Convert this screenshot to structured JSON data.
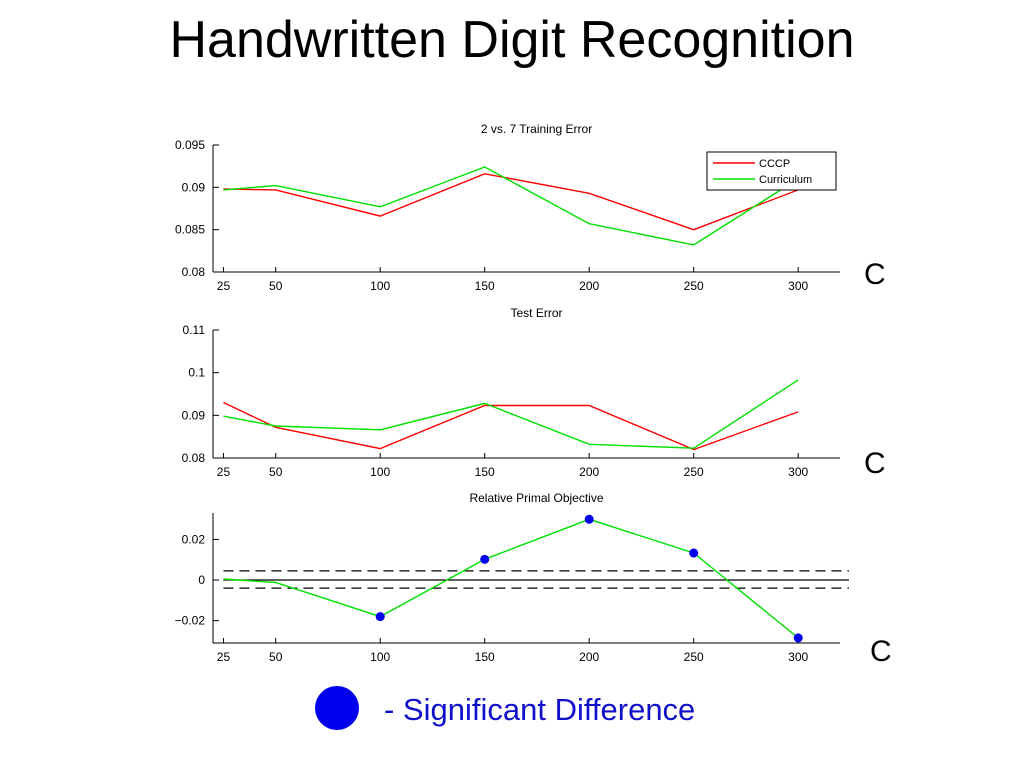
{
  "slide": {
    "title": "Handwritten Digit Recognition",
    "side_marks": [
      "C",
      "C",
      "C"
    ],
    "significance_note": "- Significant Difference"
  },
  "colors": {
    "cccp": "#ff0000",
    "curriculum": "#00e000",
    "significant": "#0000ee"
  },
  "chart_data": [
    {
      "type": "line",
      "title": "2 vs. 7 Training Error",
      "x": [
        25,
        50,
        100,
        150,
        200,
        250,
        300
      ],
      "x_ticks": [
        "25",
        "50",
        "100",
        "150",
        "200",
        "250",
        "300"
      ],
      "ylim": [
        0.08,
        0.095
      ],
      "y_ticks": [
        "0.08",
        "0.085",
        "0.09",
        "0.095"
      ],
      "legend": "top-right",
      "grid": false,
      "series": [
        {
          "name": "CCCP",
          "color": "#ff0000",
          "values": [
            0.0898,
            0.0897,
            0.0866,
            0.0916,
            0.0893,
            0.085,
            0.0897
          ]
        },
        {
          "name": "Curriculum",
          "color": "#00e000",
          "values": [
            0.0897,
            0.0902,
            0.0877,
            0.0924,
            0.0857,
            0.0832,
            0.091
          ]
        }
      ]
    },
    {
      "type": "line",
      "title": "Test Error",
      "x": [
        25,
        50,
        100,
        150,
        200,
        250,
        300
      ],
      "x_ticks": [
        "25",
        "50",
        "100",
        "150",
        "200",
        "250",
        "300"
      ],
      "ylim": [
        0.08,
        0.11
      ],
      "y_ticks": [
        "0.08",
        "0.09",
        "0.1",
        "0.11"
      ],
      "grid": false,
      "series": [
        {
          "name": "CCCP",
          "color": "#ff0000",
          "values": [
            0.093,
            0.0872,
            0.0822,
            0.0923,
            0.0923,
            0.082,
            0.0908
          ]
        },
        {
          "name": "Curriculum",
          "color": "#00e000",
          "values": [
            0.0898,
            0.0875,
            0.0866,
            0.0928,
            0.0832,
            0.0823,
            0.0983
          ]
        }
      ]
    },
    {
      "type": "line",
      "title": "Relative Primal Objective",
      "x": [
        25,
        50,
        100,
        150,
        200,
        250,
        300
      ],
      "x_ticks": [
        "25",
        "50",
        "100",
        "150",
        "200",
        "250",
        "300"
      ],
      "ylim": [
        -0.031,
        0.033
      ],
      "y_ticks": [
        "-0.02",
        "0",
        "0.02"
      ],
      "grid": false,
      "reference_lines": {
        "solid": [
          0
        ],
        "dashed": [
          0.0045,
          -0.004
        ]
      },
      "series": [
        {
          "name": "Relative Primal Objective",
          "color": "#00e000",
          "values": [
            0.0005,
            -0.0012,
            -0.018,
            0.0102,
            0.0299,
            0.0133,
            -0.0285
          ],
          "significant": [
            false,
            false,
            true,
            true,
            true,
            true,
            true
          ]
        }
      ]
    }
  ]
}
